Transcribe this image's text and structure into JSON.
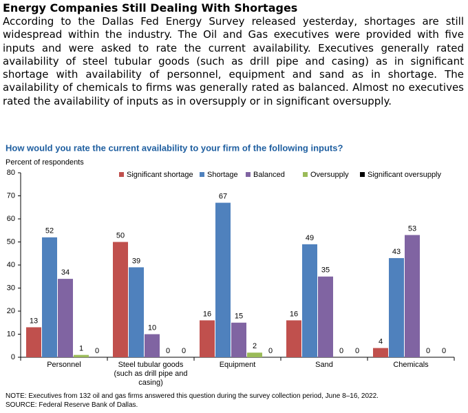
{
  "header": {
    "title": "Energy Companies Still Dealing With Shortages"
  },
  "body": {
    "paragraph": "According to the Dallas Fed Energy Survey released yesterday, shortages are still widespread within the industry. The Oil and Gas executives were provided with five inputs and were asked to rate the current availability. Executives generally rated availability of steel tubular goods (such as drill pipe and casing) as in significant shortage with availability of personnel, equipment and sand as in shortage. The availability of chemicals to firms was generally rated as balanced. Almost no executives rated the availability of inputs as in oversupply or in significant oversupply."
  },
  "chart_data": {
    "type": "bar",
    "title": "How would you rate the current availability to your firm of the following inputs?",
    "y_label": "Percent of respondents",
    "categories": [
      "Personnel",
      "Steel tubular goods (such as drill pipe and casing)",
      "Equipment",
      "Sand",
      "Chemicals"
    ],
    "series": [
      {
        "name": "Significant shortage",
        "color": "#c0504d",
        "values": [
          13,
          50,
          16,
          16,
          4
        ]
      },
      {
        "name": "Shortage",
        "color": "#4f81bd",
        "values": [
          52,
          39,
          67,
          49,
          43
        ]
      },
      {
        "name": "Balanced",
        "color": "#8064a2",
        "values": [
          34,
          10,
          15,
          35,
          53
        ]
      },
      {
        "name": "Oversupply",
        "color": "#9bbb59",
        "values": [
          1,
          0,
          2,
          0,
          0
        ]
      },
      {
        "name": "Significant oversupply",
        "color": "#000000",
        "values": [
          0,
          0,
          0,
          0,
          0
        ]
      }
    ],
    "ylim": [
      0,
      80
    ],
    "yticks": [
      0,
      10,
      20,
      30,
      40,
      50,
      60,
      70,
      80
    ],
    "grid": false,
    "legend": "top",
    "notes": [
      "NOTE: Executives from 132 oil and gas firms answered this question during the survey collection period, June 8–16, 2022.",
      "SOURCE: Federal Reserve Bank of Dallas."
    ]
  }
}
